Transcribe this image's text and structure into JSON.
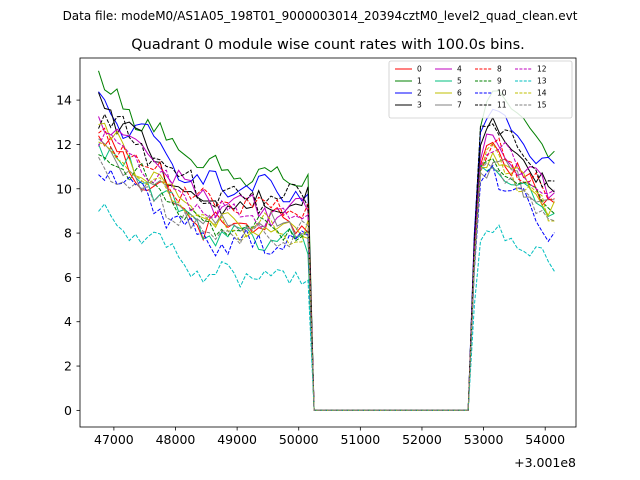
{
  "chart_data": {
    "type": "line",
    "suptitle": "Data file: modeM0/AS1A05_198T01_9000003014_20394cztM0_level2_quad_clean.evt",
    "title": "Quadrant 0 module wise count rates with 100.0s bins.",
    "xlabel": "",
    "ylabel": "",
    "x_offset_label": "+3.001e8",
    "xlim": [
      46450,
      54500
    ],
    "ylim": [
      -0.75,
      15.9
    ],
    "xticks": [
      47000,
      48000,
      49000,
      50000,
      51000,
      52000,
      53000,
      54000
    ],
    "xtick_labels": [
      "47000",
      "48000",
      "49000",
      "50000",
      "51000",
      "52000",
      "53000",
      "54000"
    ],
    "yticks": [
      0,
      2,
      4,
      6,
      8,
      10,
      12,
      14
    ],
    "ytick_labels": [
      "0",
      "2",
      "4",
      "6",
      "8",
      "10",
      "12",
      "14"
    ],
    "legend_position": "upper-right",
    "legend_ncol": 4,
    "segments": [
      {
        "x_start": 46750,
        "x_end": 50150,
        "step": 100
      },
      {
        "x_start": 52850,
        "x_end": 54150,
        "step": 100
      }
    ],
    "gap": {
      "x_start": 50250,
      "x_end": 52750,
      "value": 0
    },
    "series": [
      {
        "name": "0",
        "color": "#ff0000",
        "dash": "solid",
        "start": 12.2,
        "mid": 8.3,
        "end": 8.5,
        "rstart": 11.0,
        "rpeak": 12.0,
        "rend": 9.2
      },
      {
        "name": "1",
        "color": "#008000",
        "dash": "solid",
        "start": 14.8,
        "mid": 10.8,
        "end": 10.4,
        "rstart": 12.3,
        "rpeak": 14.9,
        "rend": 11.2
      },
      {
        "name": "2",
        "color": "#0000ff",
        "dash": "solid",
        "start": 13.8,
        "mid": 10.3,
        "end": 9.6,
        "rstart": 12.8,
        "rpeak": 13.5,
        "rend": 10.5
      },
      {
        "name": "3",
        "color": "#000000",
        "dash": "solid",
        "start": 14.0,
        "mid": 9.2,
        "end": 9.3,
        "rstart": 12.0,
        "rpeak": 13.0,
        "rend": 9.5
      },
      {
        "name": "4",
        "color": "#bf00bf",
        "dash": "solid",
        "start": 13.2,
        "mid": 9.6,
        "end": 8.8,
        "rstart": 11.5,
        "rpeak": 12.2,
        "rend": 9.8
      },
      {
        "name": "5",
        "color": "#00bf7f",
        "dash": "solid",
        "start": 12.0,
        "mid": 8.1,
        "end": 7.6,
        "rstart": 10.5,
        "rpeak": 11.2,
        "rend": 8.8
      },
      {
        "name": "6",
        "color": "#bfbf00",
        "dash": "solid",
        "start": 12.6,
        "mid": 8.6,
        "end": 8.0,
        "rstart": 10.9,
        "rpeak": 11.6,
        "rend": 9.0
      },
      {
        "name": "7",
        "color": "#808080",
        "dash": "solid",
        "start": 11.6,
        "mid": 8.5,
        "end": 8.4,
        "rstart": 10.6,
        "rpeak": 11.3,
        "rend": 9.0
      },
      {
        "name": "8",
        "color": "#ff0000",
        "dash": "dashed",
        "start": 12.6,
        "mid": 9.4,
        "end": 9.0,
        "rstart": 11.2,
        "rpeak": 12.0,
        "rend": 9.4
      },
      {
        "name": "9",
        "color": "#008000",
        "dash": "dashed",
        "start": 11.8,
        "mid": 8.4,
        "end": 8.0,
        "rstart": 10.7,
        "rpeak": 11.4,
        "rend": 9.0
      },
      {
        "name": "10",
        "color": "#0000ff",
        "dash": "dashed",
        "start": 11.2,
        "mid": 7.7,
        "end": 7.4,
        "rstart": 10.1,
        "rpeak": 10.8,
        "rend": 8.0
      },
      {
        "name": "11",
        "color": "#000000",
        "dash": "dashed",
        "start": 13.4,
        "mid": 9.8,
        "end": 9.4,
        "rstart": 12.4,
        "rpeak": 13.2,
        "rend": 10.0
      },
      {
        "name": "12",
        "color": "#bf00bf",
        "dash": "dashed",
        "start": 12.4,
        "mid": 9.0,
        "end": 8.8,
        "rstart": 11.3,
        "rpeak": 12.0,
        "rend": 9.6
      },
      {
        "name": "13",
        "color": "#00bfbf",
        "dash": "dashed",
        "start": 9.1,
        "mid": 6.1,
        "end": 6.2,
        "rstart": 7.6,
        "rpeak": 8.2,
        "rend": 6.3
      },
      {
        "name": "14",
        "color": "#bfbf00",
        "dash": "dashed",
        "start": 12.0,
        "mid": 8.4,
        "end": 8.1,
        "rstart": 10.7,
        "rpeak": 11.6,
        "rend": 8.8
      },
      {
        "name": "15",
        "color": "#808080",
        "dash": "dashed",
        "start": 11.4,
        "mid": 8.0,
        "end": 8.0,
        "rstart": 10.2,
        "rpeak": 11.0,
        "rend": 8.6
      }
    ]
  }
}
